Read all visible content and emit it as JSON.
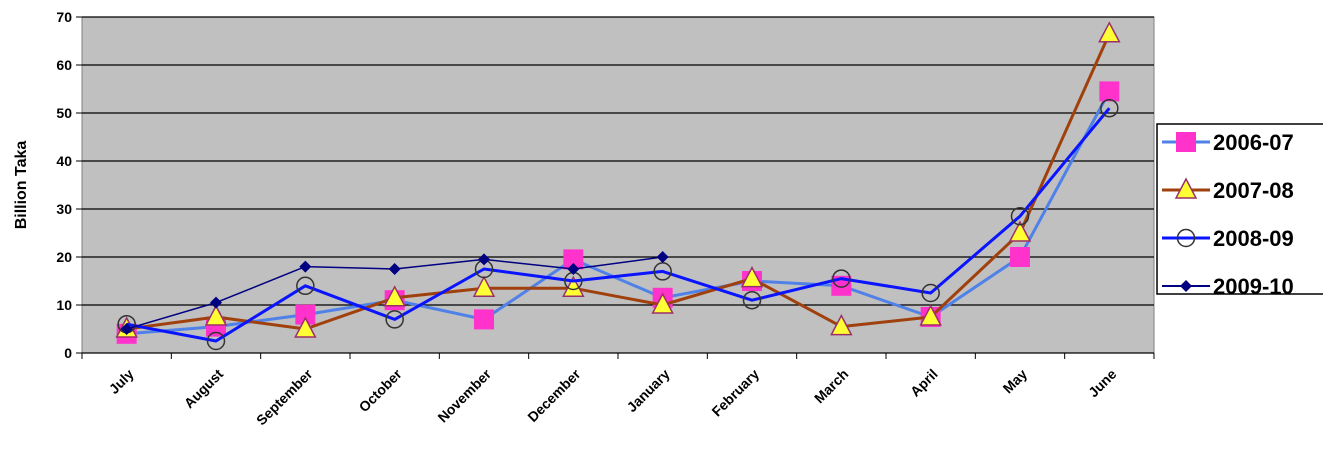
{
  "chart_data": {
    "type": "line",
    "title": "",
    "xlabel": "",
    "ylabel": "Billion Taka",
    "categories": [
      "July",
      "August",
      "September",
      "October",
      "November",
      "December",
      "January",
      "February",
      "March",
      "April",
      "May",
      "June"
    ],
    "ylim": [
      0,
      70
    ],
    "yticks": [
      0,
      10,
      20,
      30,
      40,
      50,
      60,
      70
    ],
    "grid": true,
    "legend_position": "right",
    "plot_background": "#c0c0c0",
    "series": [
      {
        "name": "2006-07",
        "color": "#4f81e8",
        "marker": "square",
        "marker_color": "#ff33cc",
        "line_width": 3,
        "values": [
          4,
          5.5,
          8,
          11,
          7,
          19.5,
          11.5,
          15,
          14,
          7.5,
          20,
          54.5
        ]
      },
      {
        "name": "2007-08",
        "color": "#a0410d",
        "marker": "triangle",
        "marker_color": "#ffff33",
        "line_width": 3,
        "values": [
          5,
          7.5,
          5,
          11.5,
          13.5,
          13.5,
          10,
          15.5,
          5.5,
          7.5,
          25,
          66.5
        ]
      },
      {
        "name": "2008-09",
        "color": "#0a14ff",
        "marker": "circle",
        "marker_color": "#ffffff",
        "line_width": 3,
        "values": [
          6,
          2.5,
          14,
          7,
          17.5,
          15,
          17,
          11,
          15.5,
          12.5,
          28.5,
          51
        ]
      },
      {
        "name": "2009-10",
        "color": "#000080",
        "marker": "diamond",
        "marker_color": "#000080",
        "line_width": 1.5,
        "values": [
          5,
          10.5,
          18,
          17.5,
          19.5,
          17.5,
          20,
          null,
          null,
          null,
          null,
          null
        ]
      }
    ]
  }
}
